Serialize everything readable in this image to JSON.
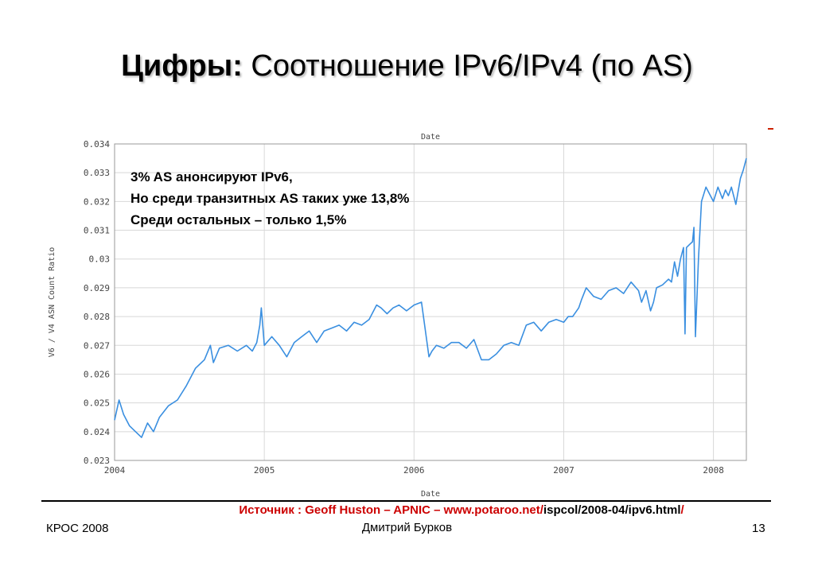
{
  "slide": {
    "title_bold": "Цифры:",
    "title_rest": "Соотношение IPv6/IPv4 (по AS)",
    "source_prefix": "Источник : Geoff Huston – APNIC – www.potaroo.net/",
    "source_path": "ispcol/2008-04/ipv6.html",
    "source_suffix": "/",
    "footer_left": "КРОС 2008",
    "footer_center": "Дмитрий Бурков",
    "page_number": "13"
  },
  "chart_data": {
    "type": "line",
    "xlabel": "Date",
    "ylabel": "V6 / V4 ASN Count Ratio",
    "x_ticks": [
      "2004",
      "2005",
      "2006",
      "2007",
      "2008"
    ],
    "y_ticks": [
      "0.023",
      "0.024",
      "0.025",
      "0.026",
      "0.027",
      "0.028",
      "0.029",
      "0.03",
      "0.031",
      "0.032",
      "0.033",
      "0.034"
    ],
    "xlim": [
      2004.0,
      2008.22
    ],
    "ylim": [
      0.023,
      0.034
    ],
    "grid": true,
    "line_color": "#3a8fe0",
    "annotations": [
      "3% AS анонсируют IPv6,",
      "Но среди транзитных AS таких уже 13,8%",
      "Среди остальных – только 1,5%"
    ],
    "series": [
      {
        "x": [
          2004.0,
          2004.03,
          2004.06,
          2004.1,
          2004.14,
          2004.18,
          2004.22,
          2004.26,
          2004.3,
          2004.36,
          2004.42,
          2004.48,
          2004.54,
          2004.6,
          2004.64,
          2004.66,
          2004.7,
          2004.76,
          2004.82,
          2004.88,
          2004.92,
          2004.95,
          2004.97,
          2004.98,
          2005.0,
          2005.05,
          2005.1,
          2005.15,
          2005.2,
          2005.25,
          2005.3,
          2005.35,
          2005.4,
          2005.45,
          2005.5,
          2005.55,
          2005.6,
          2005.65,
          2005.7,
          2005.75,
          2005.78,
          2005.82,
          2005.86,
          2005.9,
          2005.95,
          2006.0,
          2006.05,
          2006.1,
          2006.12,
          2006.15,
          2006.2,
          2006.25,
          2006.3,
          2006.35,
          2006.4,
          2006.45,
          2006.5,
          2006.55,
          2006.6,
          2006.65,
          2006.7,
          2006.75,
          2006.8,
          2006.85,
          2006.9,
          2006.95,
          2007.0,
          2007.03,
          2007.06,
          2007.1,
          2007.12,
          2007.15,
          2007.2,
          2007.25,
          2007.3,
          2007.35,
          2007.4,
          2007.45,
          2007.5,
          2007.52,
          2007.55,
          2007.58,
          2007.6,
          2007.62,
          2007.66,
          2007.7,
          2007.72,
          2007.74,
          2007.76,
          2007.78,
          2007.8,
          2007.81,
          2007.82,
          2007.84,
          2007.86,
          2007.87,
          2007.88,
          2007.9,
          2007.92,
          2007.95,
          2008.0,
          2008.03,
          2008.06,
          2008.08,
          2008.1,
          2008.12,
          2008.15,
          2008.18,
          2008.2,
          2008.22
        ],
        "y": [
          0.0244,
          0.0251,
          0.0246,
          0.0242,
          0.024,
          0.0238,
          0.0243,
          0.024,
          0.0245,
          0.0249,
          0.0251,
          0.0256,
          0.0262,
          0.0265,
          0.027,
          0.0264,
          0.0269,
          0.027,
          0.0268,
          0.027,
          0.0268,
          0.0271,
          0.0277,
          0.0283,
          0.027,
          0.0273,
          0.027,
          0.0266,
          0.0271,
          0.0273,
          0.0275,
          0.0271,
          0.0275,
          0.0276,
          0.0277,
          0.0275,
          0.0278,
          0.0277,
          0.0279,
          0.0284,
          0.0283,
          0.0281,
          0.0283,
          0.0284,
          0.0282,
          0.0284,
          0.0285,
          0.0266,
          0.0268,
          0.027,
          0.0269,
          0.0271,
          0.0271,
          0.0269,
          0.0272,
          0.0265,
          0.0265,
          0.0267,
          0.027,
          0.0271,
          0.027,
          0.0277,
          0.0278,
          0.0275,
          0.0278,
          0.0279,
          0.0278,
          0.028,
          0.028,
          0.0283,
          0.0286,
          0.029,
          0.0287,
          0.0286,
          0.0289,
          0.029,
          0.0288,
          0.0292,
          0.0289,
          0.0285,
          0.0289,
          0.0282,
          0.0285,
          0.029,
          0.0291,
          0.0293,
          0.0292,
          0.0299,
          0.0294,
          0.03,
          0.0304,
          0.0274,
          0.0304,
          0.0305,
          0.0306,
          0.0311,
          0.0273,
          0.03,
          0.032,
          0.0325,
          0.032,
          0.0325,
          0.0321,
          0.0324,
          0.0322,
          0.0325,
          0.0319,
          0.0328,
          0.0331,
          0.0335
        ]
      }
    ]
  }
}
